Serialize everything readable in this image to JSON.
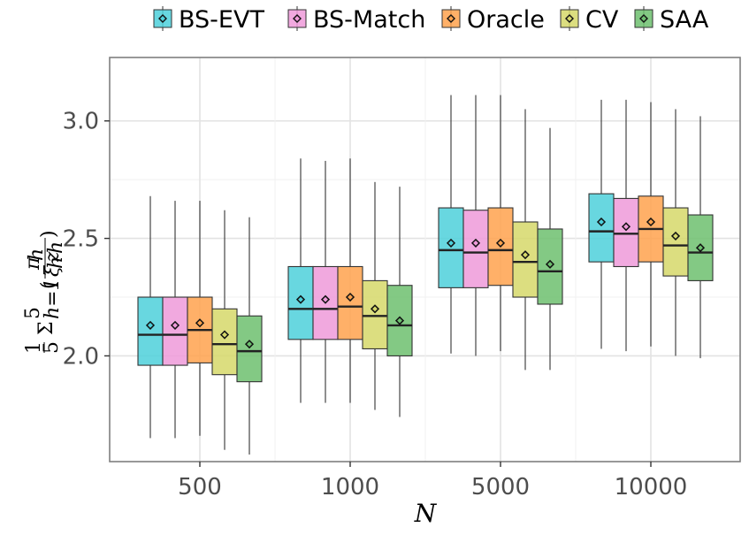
{
  "chart_data": {
    "type": "boxplot",
    "title": "",
    "xlabel": "N",
    "ylabel": "1/5 Σ_{h=1}^{5} (π_h / (ξ_h z_h))",
    "ylabel_parts": {
      "frac_num": "1",
      "frac_den": "5",
      "sigma": "Σ",
      "sup": "5",
      "sub": "h=1",
      "pi": "π",
      "pi_sub": "h",
      "xi": "ξ",
      "xi_sub": "h",
      "z": "z",
      "z_sub": "h",
      "lparen": "(",
      "rparen": ")"
    },
    "categories": [
      "500",
      "1000",
      "5000",
      "10000"
    ],
    "ylim": [
      1.55,
      3.27
    ],
    "yticks": [
      2.0,
      2.5,
      3.0
    ],
    "ytick_labels": [
      "2.0",
      "2.5",
      "3.0"
    ],
    "grid": true,
    "legend_position": "top",
    "series": [
      {
        "name": "BS-EVT",
        "color": "#4DD0DB",
        "boxes": [
          {
            "whisker_low": 1.65,
            "q1": 1.96,
            "median": 2.09,
            "q3": 2.25,
            "whisker_high": 2.68,
            "mean": 2.13
          },
          {
            "whisker_low": 1.8,
            "q1": 2.07,
            "median": 2.2,
            "q3": 2.38,
            "whisker_high": 2.84,
            "mean": 2.24
          },
          {
            "whisker_low": 2.01,
            "q1": 2.29,
            "median": 2.45,
            "q3": 2.63,
            "whisker_high": 3.11,
            "mean": 2.48
          },
          {
            "whisker_low": 2.03,
            "q1": 2.4,
            "median": 2.53,
            "q3": 2.69,
            "whisker_high": 3.09,
            "mean": 2.57
          }
        ]
      },
      {
        "name": "BS-Match",
        "color": "#EE9AD9",
        "boxes": [
          {
            "whisker_low": 1.65,
            "q1": 1.96,
            "median": 2.09,
            "q3": 2.25,
            "whisker_high": 2.66,
            "mean": 2.13
          },
          {
            "whisker_low": 1.8,
            "q1": 2.07,
            "median": 2.2,
            "q3": 2.38,
            "whisker_high": 2.83,
            "mean": 2.24
          },
          {
            "whisker_low": 2.0,
            "q1": 2.29,
            "median": 2.44,
            "q3": 2.62,
            "whisker_high": 3.11,
            "mean": 2.48
          },
          {
            "whisker_low": 2.02,
            "q1": 2.38,
            "median": 2.52,
            "q3": 2.67,
            "whisker_high": 3.09,
            "mean": 2.55
          }
        ]
      },
      {
        "name": "Oracle",
        "color": "#FFA24D",
        "boxes": [
          {
            "whisker_low": 1.66,
            "q1": 1.97,
            "median": 2.11,
            "q3": 2.25,
            "whisker_high": 2.66,
            "mean": 2.14
          },
          {
            "whisker_low": 1.8,
            "q1": 2.07,
            "median": 2.21,
            "q3": 2.38,
            "whisker_high": 2.84,
            "mean": 2.25
          },
          {
            "whisker_low": 2.02,
            "q1": 2.3,
            "median": 2.45,
            "q3": 2.63,
            "whisker_high": 3.11,
            "mean": 2.48
          },
          {
            "whisker_low": 2.04,
            "q1": 2.4,
            "median": 2.54,
            "q3": 2.68,
            "whisker_high": 3.08,
            "mean": 2.57
          }
        ]
      },
      {
        "name": "CV",
        "color": "#D6D86A",
        "boxes": [
          {
            "whisker_low": 1.6,
            "q1": 1.92,
            "median": 2.05,
            "q3": 2.2,
            "whisker_high": 2.62,
            "mean": 2.09
          },
          {
            "whisker_low": 1.77,
            "q1": 2.03,
            "median": 2.17,
            "q3": 2.32,
            "whisker_high": 2.74,
            "mean": 2.2
          },
          {
            "whisker_low": 1.94,
            "q1": 2.25,
            "median": 2.4,
            "q3": 2.57,
            "whisker_high": 3.05,
            "mean": 2.43
          },
          {
            "whisker_low": 2.0,
            "q1": 2.34,
            "median": 2.47,
            "q3": 2.63,
            "whisker_high": 3.05,
            "mean": 2.51
          }
        ]
      },
      {
        "name": "SAA",
        "color": "#6DBF6F",
        "boxes": [
          {
            "whisker_low": 1.58,
            "q1": 1.89,
            "median": 2.02,
            "q3": 2.17,
            "whisker_high": 2.59,
            "mean": 2.05
          },
          {
            "whisker_low": 1.74,
            "q1": 2.0,
            "median": 2.13,
            "q3": 2.3,
            "whisker_high": 2.72,
            "mean": 2.15
          },
          {
            "whisker_low": 1.94,
            "q1": 2.22,
            "median": 2.36,
            "q3": 2.54,
            "whisker_high": 2.97,
            "mean": 2.39
          },
          {
            "whisker_low": 1.99,
            "q1": 2.32,
            "median": 2.44,
            "q3": 2.6,
            "whisker_high": 3.02,
            "mean": 2.46
          }
        ]
      }
    ]
  }
}
